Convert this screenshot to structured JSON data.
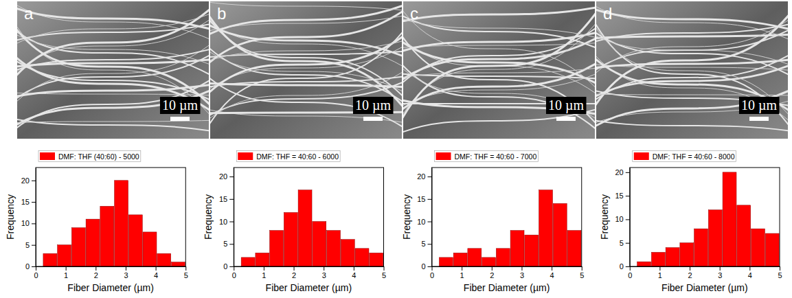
{
  "images": [
    {
      "label": "a",
      "scale_bar": "10 µm"
    },
    {
      "label": "b",
      "scale_bar": "10 µm"
    },
    {
      "label": "c",
      "scale_bar": "10 µm"
    },
    {
      "label": "d",
      "scale_bar": "10 µm"
    }
  ],
  "chart_data": [
    {
      "type": "histogram",
      "xlabel": "Fiber Diameter (µm)",
      "ylabel": "Frequency",
      "bins": [
        0.25,
        0.725,
        1.2,
        1.675,
        2.15,
        2.625,
        3.1,
        3.575,
        4.05,
        4.525,
        5.0
      ],
      "series": [
        {
          "name": "DMF: THF (40:60) - 5000",
          "color": "#ff0000",
          "values": [
            3,
            5,
            9,
            11,
            14,
            20,
            12,
            8,
            3,
            1
          ]
        }
      ],
      "xlim": [
        0,
        5
      ],
      "xticks": [
        0,
        1,
        2,
        3,
        4,
        5
      ],
      "ylim": [
        0,
        23
      ],
      "yticks": [
        0,
        5,
        10,
        15,
        20
      ],
      "legend": "top"
    },
    {
      "type": "histogram",
      "xlabel": "Fiber Diameter (µm)",
      "ylabel": "Frequency",
      "bins": [
        0.25,
        0.725,
        1.2,
        1.675,
        2.15,
        2.625,
        3.1,
        3.575,
        4.05,
        4.525,
        5.0
      ],
      "series": [
        {
          "name": "DMF: THF = 40:60 - 6000",
          "color": "#ff0000",
          "values": [
            2,
            3,
            8,
            12,
            17,
            10,
            8,
            6,
            4,
            3
          ]
        }
      ],
      "xlim": [
        0,
        5
      ],
      "xticks": [
        0,
        1,
        2,
        3,
        4,
        5
      ],
      "ylim": [
        0,
        22
      ],
      "yticks": [
        0,
        5,
        10,
        15,
        20
      ],
      "legend": "top"
    },
    {
      "type": "histogram",
      "xlabel": "Fiber Diameter (µm)",
      "ylabel": "Frequency",
      "bins": [
        0.25,
        0.725,
        1.2,
        1.675,
        2.15,
        2.625,
        3.1,
        3.575,
        4.05,
        4.525,
        5.0
      ],
      "series": [
        {
          "name": "DMF: THF = 40:60 - 7000",
          "color": "#ff0000",
          "values": [
            2,
            3,
            4,
            2,
            4,
            8,
            7,
            17,
            14,
            8
          ]
        }
      ],
      "xlim": [
        0,
        5
      ],
      "xticks": [
        0,
        1,
        2,
        3,
        4,
        5
      ],
      "ylim": [
        0,
        22
      ],
      "yticks": [
        0,
        5,
        10,
        15,
        20
      ],
      "legend": "top"
    },
    {
      "type": "histogram",
      "xlabel": "Fiber Diameter (µm)",
      "ylabel": "Frequency",
      "bins": [
        0.25,
        0.725,
        1.2,
        1.675,
        2.15,
        2.625,
        3.1,
        3.575,
        4.05,
        4.525,
        5.0
      ],
      "series": [
        {
          "name": "DMF: THF = 40:60 - 8000",
          "color": "#ff0000",
          "values": [
            1,
            3,
            4,
            5,
            8,
            12,
            20,
            13,
            8,
            7
          ]
        }
      ],
      "xlim": [
        0,
        5
      ],
      "xticks": [
        0,
        1,
        2,
        3,
        4,
        5
      ],
      "ylim": [
        0,
        21
      ],
      "yticks": [
        0,
        5,
        10,
        15,
        20
      ],
      "legend": "top"
    }
  ]
}
